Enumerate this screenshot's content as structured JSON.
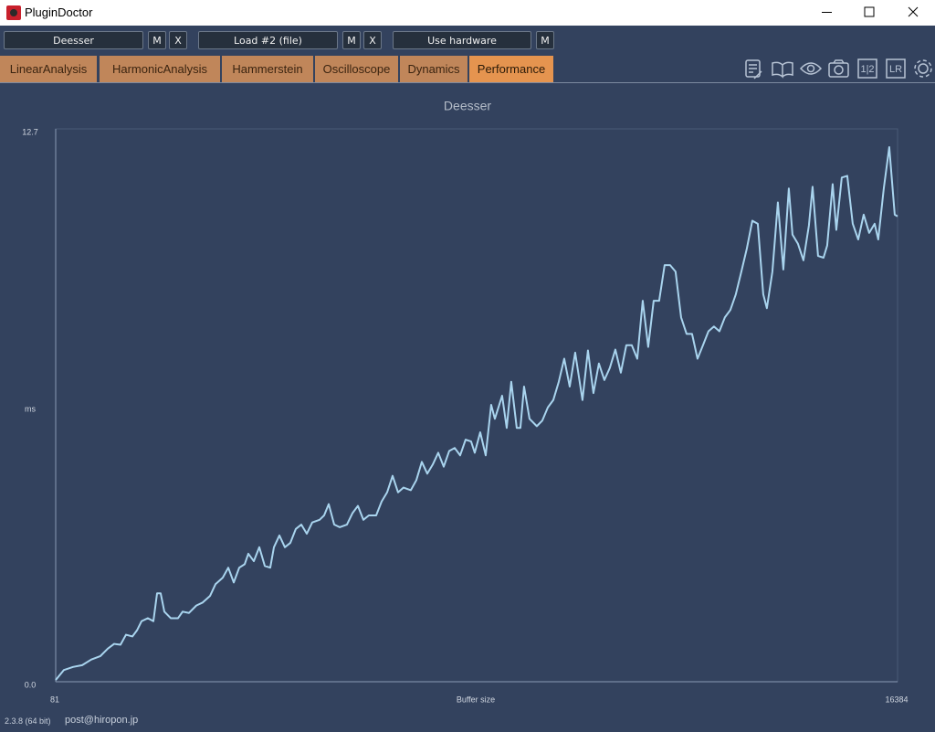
{
  "title_bar": {
    "title": "PluginDoctor"
  },
  "toolbar": {
    "slots": [
      {
        "name": "Deesser",
        "buttons": [
          "M",
          "X"
        ]
      },
      {
        "name": "Load #2 (file)",
        "buttons": [
          "M",
          "X"
        ]
      },
      {
        "name": "Use hardware",
        "buttons": [
          "M"
        ]
      }
    ]
  },
  "tabs": {
    "items": [
      "LinearAnalysis",
      "HarmonicAnalysis",
      "Hammerstein",
      "Oscilloscope",
      "Dynamics",
      "Performance"
    ],
    "active": 5
  },
  "tool_icons": {
    "channel_split": "1|2",
    "left_right": "LR"
  },
  "chart_data": {
    "type": "line",
    "title": "Deesser",
    "x_label": "Buffer size",
    "y_label": "ms",
    "color": "#a9d4ee",
    "x": [
      81,
      240,
      417,
      594,
      771,
      947,
      1089,
      1213,
      1336,
      1442,
      1566,
      1655,
      1743,
      1867,
      1973,
      2044,
      2114,
      2185,
      2309,
      2450,
      2539,
      2662,
      2804,
      2928,
      3069,
      3175,
      3316,
      3423,
      3529,
      3635,
      3741,
      3811,
      3918,
      4024,
      4130,
      4236,
      4307,
      4413,
      4519,
      4625,
      4731,
      4837,
      4943,
      5049,
      5191,
      5279,
      5368,
      5474,
      5580,
      5721,
      5827,
      5933,
      6039,
      6145,
      6287,
      6393,
      6499,
      6605,
      6711,
      6817,
      6958,
      7065,
      7171,
      7277,
      7383,
      7489,
      7595,
      7701,
      7807,
      7913,
      8019,
      8125,
      8196,
      8302,
      8408,
      8514,
      8585,
      8726,
      8815,
      8903,
      9009,
      9080,
      9151,
      9257,
      9398,
      9505,
      9611,
      9717,
      9823,
      9929,
      10035,
      10141,
      10282,
      10388,
      10494,
      10600,
      10706,
      10812,
      10919,
      11025,
      11131,
      11237,
      11343,
      11449,
      11555,
      11661,
      11767,
      11873,
      11979,
      12085,
      12192,
      12298,
      12404,
      12510,
      12616,
      12722,
      12828,
      12934,
      13040,
      13146,
      13252,
      13359,
      13465,
      13571,
      13677,
      13783,
      13853,
      13960,
      14066,
      14172,
      14278,
      14349,
      14455,
      14561,
      14667,
      14738,
      14844,
      14950,
      15021,
      15127,
      15198,
      15303,
      15410,
      15516,
      15622,
      15728,
      15834,
      15940,
      16010,
      16117,
      16223,
      16329,
      16384
    ],
    "values": [
      0.04,
      0.27,
      0.34,
      0.38,
      0.51,
      0.59,
      0.76,
      0.87,
      0.85,
      1.08,
      1.04,
      1.18,
      1.39,
      1.46,
      1.39,
      2.03,
      2.03,
      1.61,
      1.46,
      1.46,
      1.61,
      1.58,
      1.75,
      1.82,
      1.97,
      2.24,
      2.39,
      2.62,
      2.28,
      2.62,
      2.7,
      2.94,
      2.77,
      3.09,
      2.66,
      2.62,
      3.09,
      3.36,
      3.09,
      3.19,
      3.51,
      3.61,
      3.4,
      3.66,
      3.72,
      3.82,
      4.08,
      3.61,
      3.55,
      3.61,
      3.87,
      4.04,
      3.72,
      3.82,
      3.82,
      4.14,
      4.35,
      4.73,
      4.35,
      4.46,
      4.4,
      4.63,
      5.05,
      4.78,
      4.99,
      5.26,
      4.94,
      5.3,
      5.37,
      5.2,
      5.56,
      5.52,
      5.26,
      5.73,
      5.2,
      6.36,
      6.04,
      6.57,
      5.83,
      6.89,
      5.83,
      5.83,
      6.78,
      6.04,
      5.87,
      6.0,
      6.3,
      6.47,
      6.89,
      7.42,
      6.78,
      7.56,
      6.47,
      7.61,
      6.63,
      7.31,
      6.93,
      7.21,
      7.63,
      7.1,
      7.73,
      7.73,
      7.42,
      8.75,
      7.69,
      8.75,
      8.75,
      9.57,
      9.57,
      9.42,
      8.37,
      7.99,
      7.99,
      7.42,
      7.73,
      8.05,
      8.16,
      8.05,
      8.37,
      8.54,
      8.9,
      9.42,
      9.95,
      10.59,
      10.52,
      8.9,
      8.58,
      9.42,
      11.01,
      9.47,
      11.33,
      10.27,
      10.06,
      9.68,
      10.48,
      11.37,
      9.78,
      9.74,
      10.02,
      11.43,
      10.38,
      11.58,
      11.62,
      10.52,
      10.16,
      10.73,
      10.31,
      10.52,
      10.16,
      11.33,
      12.28,
      10.73,
      10.69
    ],
    "xlim": [
      81,
      16384
    ],
    "xticks": [
      81,
      16384
    ],
    "ylim": [
      0,
      12.7
    ],
    "yticks": [
      {
        "value": 0,
        "label": "0.0"
      },
      12.7
    ]
  },
  "status_bar": {
    "version": "2.3.8 (64 bit)",
    "contact": "post@hiropon.jp"
  }
}
